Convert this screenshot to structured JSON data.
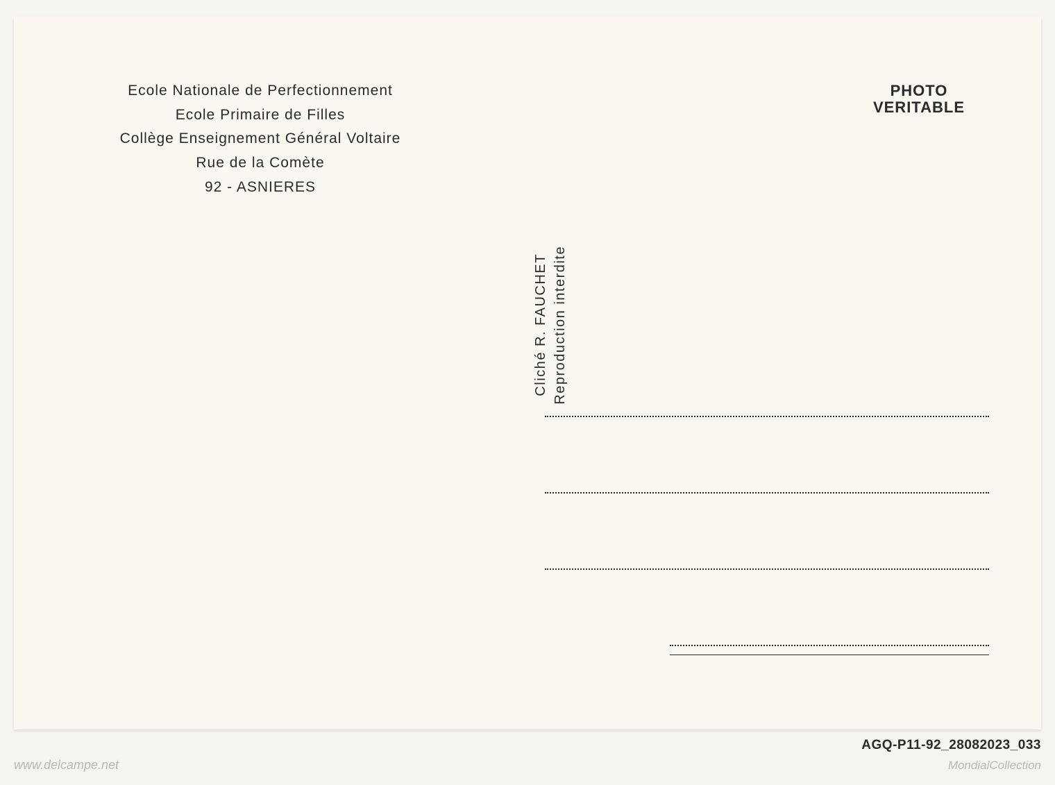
{
  "header": {
    "line1": "Ecole Nationale de Perfectionnement",
    "line2": "Ecole Primaire de Filles",
    "line3": "Collège Enseignement Général Voltaire",
    "line4": "Rue de la Comète",
    "line5": "92 - ASNIERES"
  },
  "stamp": {
    "line1": "PHOTO",
    "line2": "VERITABLE"
  },
  "divider": {
    "line1": "Cliché R. FAUCHET",
    "line2": "Reproduction interdite"
  },
  "footer": {
    "watermark_left": "www.delcampe.net",
    "watermark_right": "MondialCollection",
    "ref_code": "AGQ-P11-92_28082023_033"
  },
  "styling": {
    "postcard_bg": "#faf8f0",
    "page_bg": "#f5f5f0",
    "text_color": "#2a2a2a",
    "watermark_color": "#b8b8b8",
    "header_fontsize": 21,
    "stamp_fontsize": 22,
    "divider_fontsize": 20,
    "address_line_count": 4,
    "address_line_spacing": 108
  }
}
